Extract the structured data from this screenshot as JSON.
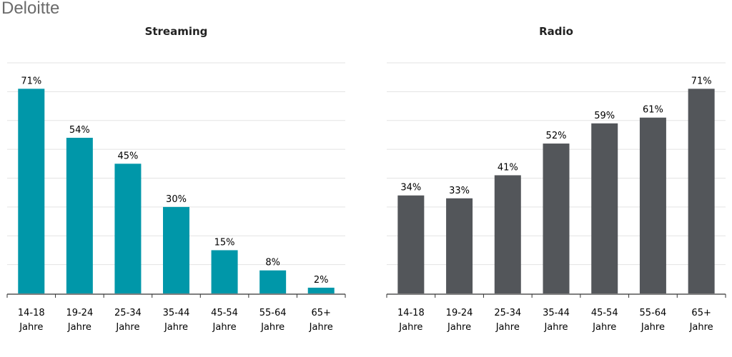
{
  "brand": "Deloitte",
  "colors": {
    "streaming": "#0097A9",
    "radio": "#53565A",
    "grid": "#e3e3e3",
    "axis": "#333333"
  },
  "chart_data": [
    {
      "type": "bar",
      "title": "Streaming",
      "categories": [
        "14-18 Jahre",
        "19-24 Jahre",
        "25-34 Jahre",
        "35-44 Jahre",
        "45-54 Jahre",
        "55-64 Jahre",
        "65+ Jahre"
      ],
      "values": [
        71,
        54,
        45,
        30,
        15,
        8,
        2
      ],
      "data_labels": [
        "71%",
        "54%",
        "45%",
        "30%",
        "15%",
        "8%",
        "2%"
      ],
      "ylim": [
        0,
        80
      ],
      "grid": true,
      "color": "#0097A9"
    },
    {
      "type": "bar",
      "title": "Radio",
      "categories": [
        "14-18 Jahre",
        "19-24 Jahre",
        "25-34 Jahre",
        "35-44 Jahre",
        "45-54 Jahre",
        "55-64 Jahre",
        "65+ Jahre"
      ],
      "values": [
        34,
        33,
        41,
        52,
        59,
        61,
        71
      ],
      "data_labels": [
        "34%",
        "33%",
        "41%",
        "52%",
        "59%",
        "61%",
        "71%"
      ],
      "ylim": [
        0,
        80
      ],
      "grid": true,
      "color": "#53565A"
    }
  ]
}
